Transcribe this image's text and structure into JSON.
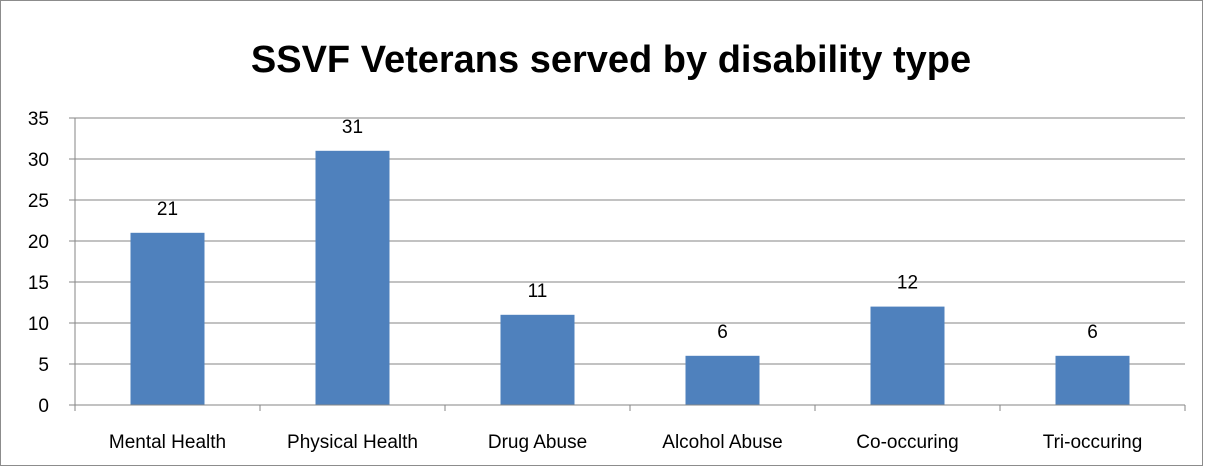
{
  "chart_data": {
    "type": "bar",
    "title": "SSVF Veterans served by disability type",
    "categories": [
      "Mental Health",
      "Physical Health",
      "Drug Abuse",
      "Alcohol Abuse",
      "Co-occuring",
      "Tri-occuring"
    ],
    "values": [
      21,
      31,
      11,
      6,
      12,
      6
    ],
    "data_labels": [
      "21",
      "31",
      "11",
      "6",
      "12",
      "6"
    ],
    "ylim": [
      0,
      35
    ],
    "yticks": [
      0,
      5,
      10,
      15,
      20,
      25,
      30,
      35
    ],
    "grid": true,
    "legend": "none",
    "xlabel": "",
    "ylabel": "",
    "bar_color": "#4f81bd",
    "grid_color": "#868686",
    "text_color": "#000000"
  }
}
